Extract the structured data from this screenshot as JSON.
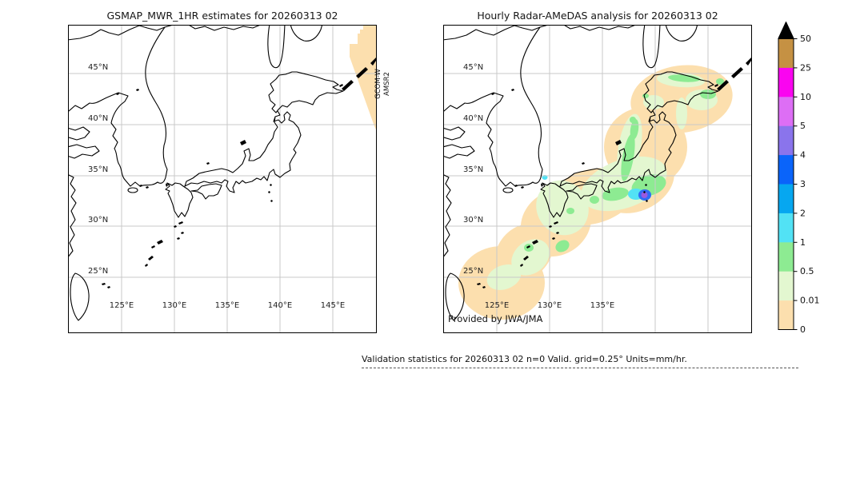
{
  "left_panel": {
    "title": "GSMAP_MWR_1HR estimates for 20260313 02",
    "side_label": {
      "line1": "GCOM-W",
      "line2": "AMSR2"
    },
    "lat_labels": [
      "45°N",
      "40°N",
      "35°N",
      "30°N",
      "25°N"
    ],
    "lon_labels": [
      "125°E",
      "130°E",
      "135°E",
      "140°E",
      "145°E"
    ],
    "swath_color": "#fcdfae"
  },
  "right_panel": {
    "title": "Hourly Radar-AMeDAS analysis for 20260313 02",
    "credit": "Provided by JWA/JMA",
    "lat_labels": [
      "45°N",
      "40°N",
      "35°N",
      "30°N",
      "25°N"
    ],
    "lon_labels": [
      "125°E",
      "130°E",
      "135°E"
    ]
  },
  "map_grid": {
    "color": "#c9c9c9",
    "lat_y": [
      60,
      124,
      188,
      251,
      315
    ],
    "lon_x": [
      66,
      132,
      198,
      264,
      330
    ]
  },
  "colorbar": {
    "units_implied": "mm/hr",
    "tick_labels": [
      "50",
      "25",
      "10",
      "5",
      "4",
      "3",
      "2",
      "1",
      "0.5",
      "0.01",
      "0"
    ],
    "segment_colors_top_to_bottom": [
      "#c59143",
      "#fa05f0",
      "#dd6ef5",
      "#8a74ec",
      "#0a64fa",
      "#06a7f0",
      "#52e2f5",
      "#8deb92",
      "#e3f7d0",
      "#fcdfae"
    ],
    "overflow_marker_color": "#000000"
  },
  "precip_palette": {
    "trace": "#fcdfae",
    "very_light": "#e3f7d0",
    "light": "#8deb92",
    "moderate": "#52e2f5",
    "heavy": "#2f6cf5",
    "intense": "#9a5ae0"
  },
  "footer": {
    "text": "Validation statistics for 20260313 02  n=0 Valid. grid=0.25° Units=mm/hr."
  }
}
